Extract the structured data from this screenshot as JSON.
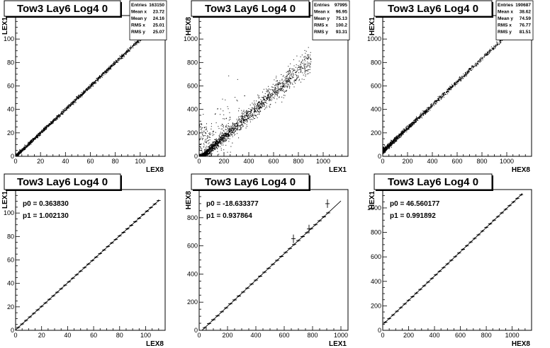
{
  "chart_data": [
    {
      "type": "scatter",
      "title": "Tow3 Lay6 Log4 0",
      "xlabel": "LEX8",
      "ylabel": "LEX1",
      "xlim": [
        0,
        120
      ],
      "ylim": [
        0,
        120
      ],
      "xticks": [
        0,
        20,
        40,
        60,
        80,
        100
      ],
      "yticks": [
        0,
        20,
        40,
        60,
        80,
        100
      ],
      "stats": {
        "Entries": "163150",
        "Mean x": "23.72",
        "Mean y": "24.16",
        "RMS x": "25.01",
        "RMS y": "25.07"
      },
      "trend": {
        "slope": 1.0,
        "intercept": 0.36,
        "xmax": 108
      }
    },
    {
      "type": "scatter",
      "title": "Tow3 Lay6 Log4 0",
      "xlabel": "LEX1",
      "ylabel": "HEX8",
      "xlim": [
        0,
        1200
      ],
      "ylim": [
        0,
        1200
      ],
      "xticks": [
        0,
        200,
        400,
        600,
        800,
        1000
      ],
      "yticks": [
        0,
        200,
        400,
        600,
        800,
        1000
      ],
      "stats": {
        "Entries": "97995",
        "Mean x": "96.95",
        "Mean y": "75.13",
        "RMS x": "100.2",
        "RMS y": "93.31"
      },
      "trend": {
        "slope": 0.94,
        "intercept": -18.6,
        "xmax": 900
      }
    },
    {
      "type": "scatter",
      "title": "Tow3 Lay6 Log4 0",
      "xlabel": "HEX8",
      "ylabel": "HEX1",
      "xlim": [
        0,
        1200
      ],
      "ylim": [
        0,
        1200
      ],
      "xticks": [
        0,
        200,
        400,
        600,
        800,
        1000
      ],
      "yticks": [
        0,
        200,
        400,
        600,
        800,
        1000
      ],
      "stats": {
        "Entries": "190687",
        "Mean x": "38.62",
        "Mean y": "74.59",
        "RMS x": "76.77",
        "RMS y": "81.51"
      },
      "trend": {
        "slope": 0.99,
        "intercept": 46.6,
        "xmax": 1000
      }
    },
    {
      "type": "scatter",
      "title": "Tow3 Lay6 Log4 0",
      "xlabel": "LEX8",
      "ylabel": "LEX1",
      "xlim": [
        0,
        115
      ],
      "ylim": [
        0,
        120
      ],
      "xticks": [
        0,
        20,
        40,
        60,
        80,
        100
      ],
      "yticks": [
        0,
        20,
        40,
        60,
        80,
        100
      ],
      "fit": {
        "p0_label": "p0 = 0.363830",
        "p1_label": "p1 = 1.002130",
        "p0": 0.36383,
        "p1": 1.00213,
        "xmin": 0,
        "xmax": 110
      },
      "profile_x": [
        2,
        5,
        8,
        11,
        14,
        17,
        20,
        23,
        26,
        29,
        32,
        35,
        38,
        41,
        44,
        47,
        50,
        53,
        56,
        59,
        62,
        65,
        68,
        71,
        74,
        77,
        80,
        83,
        86,
        89,
        92,
        95,
        98,
        101,
        104,
        107,
        110
      ],
      "profile_ex": 1.5
    },
    {
      "type": "scatter",
      "title": "Tow3 Lay6 Log4 0",
      "xlabel": "LEX1",
      "ylabel": "HEX8",
      "xlim": [
        0,
        1050
      ],
      "ylim": [
        0,
        1000
      ],
      "xticks": [
        0,
        200,
        400,
        600,
        800,
        1000
      ],
      "yticks": [
        0,
        200,
        400,
        600,
        800
      ],
      "fit": {
        "p0_label": "p0 = -18.633377",
        "p1_label": "p1 = 0.937864",
        "p0": -18.633377,
        "p1": 0.937864,
        "xmin": 20,
        "xmax": 1000
      },
      "profile_x": [
        40,
        70,
        100,
        130,
        160,
        190,
        220,
        250,
        280,
        310,
        340,
        370,
        400,
        430,
        460,
        490,
        520,
        550,
        580,
        610,
        640,
        670,
        700,
        730,
        760,
        790,
        820,
        850,
        880,
        910
      ],
      "profile_ex": 15,
      "profile_outliers": [
        {
          "x": 905,
          "y": 900
        },
        {
          "x": 775,
          "y": 720
        },
        {
          "x": 665,
          "y": 650
        }
      ]
    },
    {
      "type": "scatter",
      "title": "Tow3 Lay6 Log4 0",
      "xlabel": "HEX8",
      "ylabel": "HEX1",
      "xlim": [
        0,
        1150
      ],
      "ylim": [
        0,
        1150
      ],
      "xticks": [
        0,
        200,
        400,
        600,
        800,
        1000
      ],
      "yticks": [
        0,
        200,
        400,
        600,
        800,
        1000
      ],
      "fit": {
        "p0_label": "p0 = 46.560177",
        "p1_label": "p1 = 0.991892",
        "p0": 46.560177,
        "p1": 0.991892,
        "xmin": 0,
        "xmax": 1080
      },
      "profile_x": [
        20,
        50,
        80,
        110,
        140,
        170,
        200,
        230,
        260,
        290,
        320,
        350,
        380,
        410,
        440,
        470,
        500,
        530,
        560,
        590,
        620,
        650,
        680,
        710,
        740,
        770,
        800,
        830,
        860,
        890,
        920,
        950,
        980,
        1010,
        1040,
        1070
      ],
      "profile_ex": 15
    }
  ]
}
